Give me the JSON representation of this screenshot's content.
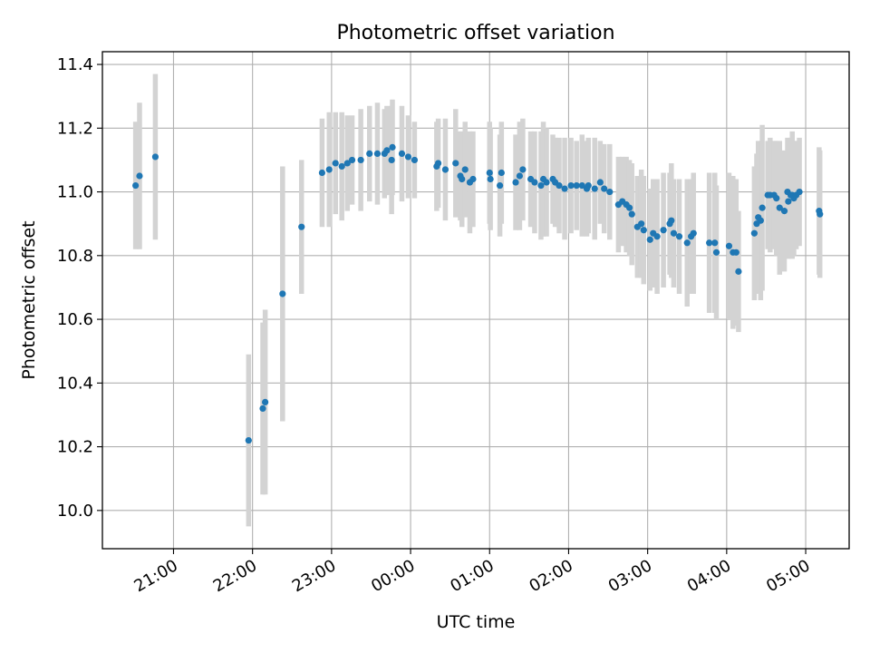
{
  "chart_data": {
    "type": "scatter",
    "title": "Photometric offset variation",
    "xlabel": "UTC time",
    "ylabel": "Photometric offset",
    "x_unit": "hours_from_midnight_utc",
    "xlim": [
      -3.9,
      5.55
    ],
    "ylim": [
      9.88,
      11.44
    ],
    "x_ticks": [
      -3,
      -2,
      -1,
      0,
      1,
      2,
      3,
      4,
      5
    ],
    "x_tick_labels": [
      "21:00",
      "22:00",
      "23:00",
      "00:00",
      "01:00",
      "02:00",
      "03:00",
      "04:00",
      "05:00"
    ],
    "y_ticks": [
      10.0,
      10.2,
      10.4,
      10.6,
      10.8,
      11.0,
      11.2,
      11.4
    ],
    "y_tick_labels": [
      "10.0",
      "10.2",
      "10.4",
      "10.6",
      "10.8",
      "11.0",
      "11.2",
      "11.4"
    ],
    "grid": true,
    "legend": "none",
    "colors": {
      "point": "#1f77b4",
      "errorbar": "#d3d3d3",
      "grid": "#b0b0b0"
    },
    "series": [
      {
        "points": [
          [
            -3.48,
            11.02,
            0.2
          ],
          [
            -3.43,
            11.05,
            0.23
          ],
          [
            -3.23,
            11.11,
            0.26
          ],
          [
            -2.05,
            10.22,
            0.27
          ],
          [
            -1.87,
            10.32,
            0.27
          ],
          [
            -1.84,
            10.34,
            0.29
          ],
          [
            -1.62,
            10.68,
            0.4
          ],
          [
            -1.38,
            10.89,
            0.21
          ],
          [
            -1.12,
            11.06,
            0.17
          ],
          [
            -1.03,
            11.07,
            0.18
          ],
          [
            -0.95,
            11.09,
            0.16
          ],
          [
            -0.87,
            11.08,
            0.17
          ],
          [
            -0.8,
            11.09,
            0.15
          ],
          [
            -0.74,
            11.1,
            0.14
          ],
          [
            -0.63,
            11.1,
            0.16
          ],
          [
            -0.52,
            11.12,
            0.15
          ],
          [
            -0.42,
            11.12,
            0.16
          ],
          [
            -0.33,
            11.12,
            0.14
          ],
          [
            -0.3,
            11.13,
            0.14
          ],
          [
            -0.24,
            11.1,
            0.17
          ],
          [
            -0.23,
            11.14,
            0.15
          ],
          [
            -0.11,
            11.12,
            0.15
          ],
          [
            -0.03,
            11.11,
            0.13
          ],
          [
            0.05,
            11.1,
            0.12
          ],
          [
            0.33,
            11.08,
            0.14
          ],
          [
            0.35,
            11.09,
            0.14
          ],
          [
            0.44,
            11.07,
            0.16
          ],
          [
            0.57,
            11.09,
            0.17
          ],
          [
            0.63,
            11.05,
            0.14
          ],
          [
            0.65,
            11.04,
            0.15
          ],
          [
            0.69,
            11.07,
            0.15
          ],
          [
            0.75,
            11.03,
            0.16
          ],
          [
            0.79,
            11.04,
            0.15
          ],
          [
            1.0,
            11.06,
            0.16
          ],
          [
            1.01,
            11.04,
            0.16
          ],
          [
            1.13,
            11.02,
            0.16
          ],
          [
            1.15,
            11.06,
            0.16
          ],
          [
            1.33,
            11.03,
            0.15
          ],
          [
            1.38,
            11.05,
            0.17
          ],
          [
            1.42,
            11.07,
            0.16
          ],
          [
            1.52,
            11.04,
            0.15
          ],
          [
            1.57,
            11.03,
            0.16
          ],
          [
            1.65,
            11.02,
            0.17
          ],
          [
            1.68,
            11.04,
            0.18
          ],
          [
            1.72,
            11.03,
            0.17
          ],
          [
            1.8,
            11.04,
            0.14
          ],
          [
            1.83,
            11.03,
            0.14
          ],
          [
            1.88,
            11.02,
            0.15
          ],
          [
            1.95,
            11.01,
            0.16
          ],
          [
            2.03,
            11.02,
            0.15
          ],
          [
            2.1,
            11.02,
            0.14
          ],
          [
            2.17,
            11.02,
            0.16
          ],
          [
            2.23,
            11.01,
            0.15
          ],
          [
            2.25,
            11.02,
            0.15
          ],
          [
            2.33,
            11.01,
            0.16
          ],
          [
            2.4,
            11.03,
            0.13
          ],
          [
            2.45,
            11.01,
            0.14
          ],
          [
            2.52,
            11.0,
            0.15
          ],
          [
            2.63,
            10.96,
            0.15
          ],
          [
            2.68,
            10.97,
            0.14
          ],
          [
            2.73,
            10.96,
            0.15
          ],
          [
            2.77,
            10.95,
            0.15
          ],
          [
            2.8,
            10.93,
            0.16
          ],
          [
            2.87,
            10.89,
            0.16
          ],
          [
            2.92,
            10.9,
            0.17
          ],
          [
            2.95,
            10.88,
            0.17
          ],
          [
            3.03,
            10.85,
            0.16
          ],
          [
            3.07,
            10.87,
            0.17
          ],
          [
            3.12,
            10.86,
            0.18
          ],
          [
            3.2,
            10.88,
            0.18
          ],
          [
            3.28,
            10.9,
            0.16
          ],
          [
            3.3,
            10.91,
            0.18
          ],
          [
            3.33,
            10.87,
            0.17
          ],
          [
            3.4,
            10.86,
            0.18
          ],
          [
            3.5,
            10.84,
            0.2
          ],
          [
            3.55,
            10.86,
            0.18
          ],
          [
            3.58,
            10.87,
            0.19
          ],
          [
            3.78,
            10.84,
            0.22
          ],
          [
            3.85,
            10.84,
            0.22
          ],
          [
            3.87,
            10.81,
            0.21
          ],
          [
            4.03,
            10.83,
            0.23
          ],
          [
            4.08,
            10.81,
            0.24
          ],
          [
            4.12,
            10.81,
            0.23
          ],
          [
            4.15,
            10.75,
            0.19
          ],
          [
            4.35,
            10.87,
            0.21
          ],
          [
            4.38,
            10.9,
            0.22
          ],
          [
            4.4,
            10.92,
            0.24
          ],
          [
            4.43,
            10.91,
            0.25
          ],
          [
            4.45,
            10.95,
            0.26
          ],
          [
            4.52,
            10.99,
            0.17
          ],
          [
            4.55,
            10.99,
            0.18
          ],
          [
            4.6,
            10.99,
            0.17
          ],
          [
            4.63,
            10.98,
            0.18
          ],
          [
            4.67,
            10.95,
            0.21
          ],
          [
            4.73,
            10.94,
            0.19
          ],
          [
            4.77,
            11.0,
            0.17
          ],
          [
            4.78,
            10.97,
            0.18
          ],
          [
            4.81,
            10.99,
            0.18
          ],
          [
            4.83,
            10.99,
            0.2
          ],
          [
            4.85,
            10.98,
            0.18
          ],
          [
            4.88,
            10.99,
            0.17
          ],
          [
            4.92,
            11.0,
            0.17
          ],
          [
            5.17,
            10.94,
            0.2
          ],
          [
            5.18,
            10.93,
            0.2
          ]
        ]
      }
    ]
  }
}
